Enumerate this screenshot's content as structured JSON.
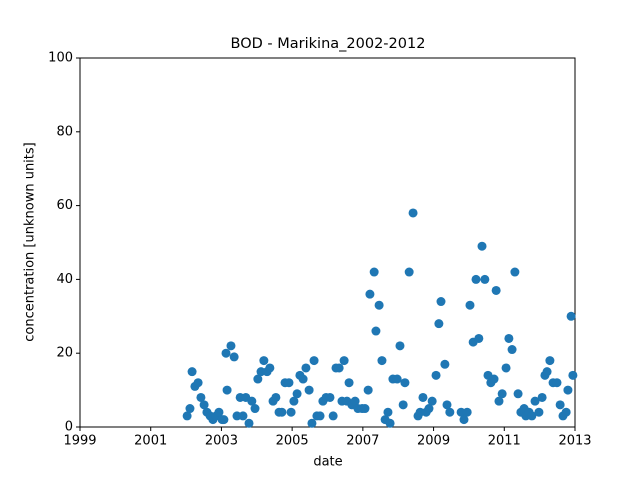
{
  "chart_data": {
    "type": "scatter",
    "title": "BOD - Marikina_2002-2012",
    "xlabel": "date",
    "ylabel": "concentration [unknown units]",
    "color": "#1f77b4",
    "x": [
      2002.03,
      2002.11,
      2002.17,
      2002.25,
      2002.34,
      2002.42,
      2002.51,
      2002.59,
      2002.68,
      2002.76,
      2002.85,
      2002.93,
      2003.02,
      2003.07,
      2003.16,
      2003.13,
      2003.27,
      2003.36,
      2003.44,
      2003.53,
      2003.61,
      2003.69,
      2003.78,
      2003.86,
      2003.95,
      2004.03,
      2004.12,
      2004.2,
      2004.29,
      2004.37,
      2004.46,
      2004.54,
      2004.63,
      2004.71,
      2004.8,
      2004.91,
      2004.97,
      2005.05,
      2005.14,
      2005.22,
      2005.31,
      2005.39,
      2005.48,
      2005.56,
      2005.62,
      2005.7,
      2005.79,
      2005.87,
      2005.96,
      2006.07,
      2006.16,
      2006.24,
      2006.33,
      2006.41,
      2006.47,
      2006.55,
      2006.61,
      2006.69,
      2006.78,
      2006.86,
      2006.98,
      2007.06,
      2007.15,
      2007.2,
      2007.32,
      2007.37,
      2007.46,
      2007.54,
      2007.63,
      2007.71,
      2007.77,
      2007.85,
      2007.97,
      2008.05,
      2008.14,
      2008.19,
      2008.31,
      2008.42,
      2008.56,
      2008.62,
      2008.7,
      2008.79,
      2008.87,
      2008.96,
      2009.07,
      2009.15,
      2009.21,
      2009.32,
      2009.38,
      2009.46,
      2009.78,
      2009.86,
      2009.95,
      2010.03,
      2010.12,
      2010.2,
      2010.28,
      2010.37,
      2010.45,
      2010.54,
      2010.62,
      2010.71,
      2010.77,
      2010.85,
      2010.94,
      2011.05,
      2011.13,
      2011.22,
      2011.3,
      2011.39,
      2011.47,
      2011.56,
      2011.61,
      2011.7,
      2011.78,
      2011.87,
      2011.98,
      2012.07,
      2012.15,
      2012.21,
      2012.29,
      2012.38,
      2012.49,
      2012.58,
      2012.66,
      2012.75,
      2012.8,
      2012.89,
      2012.94
    ],
    "values": [
      3,
      5,
      15,
      11,
      12,
      8,
      6,
      4,
      3,
      2,
      3,
      4,
      2,
      2,
      10,
      20,
      22,
      19,
      3,
      8,
      3,
      8,
      1,
      7,
      5,
      13,
      15,
      18,
      15,
      16,
      7,
      8,
      4,
      4,
      12,
      12,
      4,
      7,
      9,
      14,
      13,
      16,
      10,
      1,
      18,
      3,
      3,
      7,
      8,
      8,
      3,
      16,
      16,
      7,
      18,
      7,
      12,
      6,
      7,
      5,
      5,
      5,
      10,
      36,
      42,
      26,
      33,
      18,
      2,
      4,
      1,
      13,
      13,
      22,
      6,
      12,
      42,
      58,
      3,
      4,
      8,
      4,
      5,
      7,
      14,
      28,
      34,
      17,
      6,
      4,
      4,
      2,
      4,
      33,
      23,
      40,
      24,
      49,
      40,
      14,
      12,
      13,
      37,
      7,
      9,
      16,
      24,
      21,
      42,
      9,
      4,
      5,
      3,
      4,
      3,
      7,
      4,
      8,
      14,
      15,
      18,
      12,
      12,
      6,
      3,
      4,
      10,
      30,
      14
    ],
    "xlim": [
      1999,
      2013
    ],
    "xticks": [
      1999,
      2001,
      2003,
      2005,
      2007,
      2009,
      2011,
      2013
    ],
    "ylim": [
      0,
      100
    ],
    "yticks": [
      0,
      20,
      40,
      60,
      80,
      100
    ]
  }
}
